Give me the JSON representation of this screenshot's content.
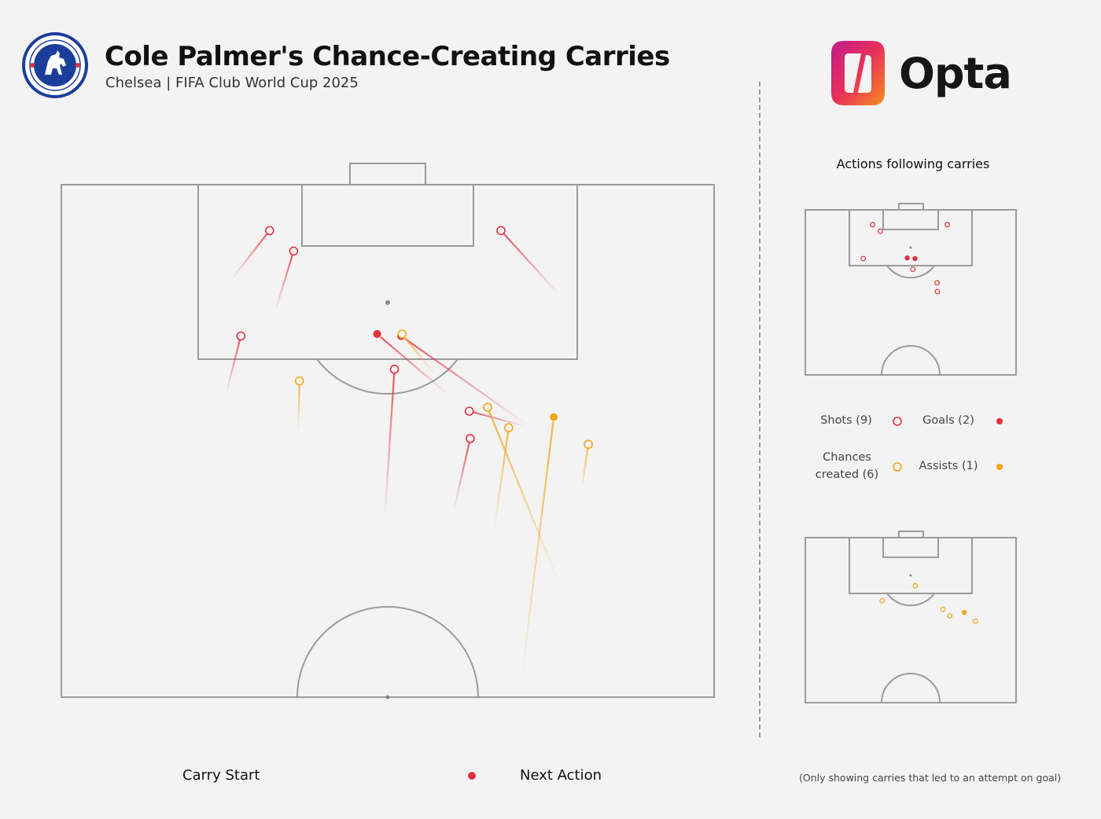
{
  "header": {
    "title": "Cole Palmer's Chance-Creating Carries",
    "subtitle": "Chelsea | FIFA Club World Cup 2025",
    "crest_text": "CHELSEA FOOTBALL CLUB",
    "brand": "Opta"
  },
  "side": {
    "title": "Actions following carries",
    "legend": {
      "shots": "Shots (9)",
      "goals": "Goals (2)",
      "chances_line1": "Chances",
      "chances_line2": "created (6)",
      "assists": "Assists (1)"
    }
  },
  "bottom_legend": {
    "carry_start": "Carry Start",
    "next_action": "Next Action"
  },
  "footnote": "(Only showing carries that led to an attempt on goal)",
  "colors": {
    "background": "#f3f3f3",
    "pitch_line": "#999999",
    "shot": "#e2313f",
    "chance": "#f2a51e",
    "crest_blue": "#1b3e9a",
    "text": "#111111"
  },
  "chart_data": {
    "type": "scatter",
    "pitch": "attacking half, goal at top",
    "units": "pitch metres: x = 0 left touchline to 68 right touchline, y = metres from goal line",
    "xlim": [
      0,
      68
    ],
    "ylim": [
      0,
      52.5
    ],
    "carries": [
      {
        "category": "shot",
        "start": [
          17.8,
          9.6
        ],
        "end": [
          21.7,
          4.7
        ]
      },
      {
        "category": "shot",
        "start": [
          22.3,
          12.9
        ],
        "end": [
          24.2,
          6.8
        ]
      },
      {
        "category": "shot",
        "start": [
          51.8,
          11.2
        ],
        "end": [
          45.8,
          4.7
        ]
      },
      {
        "category": "shot",
        "start": [
          17.2,
          21.3
        ],
        "end": [
          18.7,
          15.5
        ]
      },
      {
        "category": "goal",
        "start": [
          40.3,
          21.5
        ],
        "end": [
          32.9,
          15.3
        ]
      },
      {
        "category": "goal",
        "start": [
          48.7,
          24.7
        ],
        "end": [
          35.4,
          15.5
        ]
      },
      {
        "category": "shot",
        "start": [
          33.7,
          34.2
        ],
        "end": [
          34.7,
          18.9
        ]
      },
      {
        "category": "shot",
        "start": [
          48.2,
          24.7
        ],
        "end": [
          42.5,
          23.2
        ]
      },
      {
        "category": "shot",
        "start": [
          40.9,
          33.3
        ],
        "end": [
          42.6,
          26.0
        ]
      },
      {
        "category": "chance",
        "start": [
          24.7,
          25.2
        ],
        "end": [
          24.8,
          20.1
        ]
      },
      {
        "category": "chance",
        "start": [
          38.8,
          19.3
        ],
        "end": [
          35.5,
          15.3
        ]
      },
      {
        "category": "chance",
        "start": [
          52.0,
          41.2
        ],
        "end": [
          44.4,
          22.8
        ]
      },
      {
        "category": "chance",
        "start": [
          45.1,
          35.4
        ],
        "end": [
          46.6,
          24.9
        ]
      },
      {
        "category": "chance",
        "start": [
          54.2,
          31.2
        ],
        "end": [
          54.9,
          26.6
        ]
      },
      {
        "category": "assist",
        "start": [
          47.9,
          51.0
        ],
        "end": [
          51.3,
          23.8
        ]
      }
    ],
    "shots_count": 9,
    "goals_count": 2,
    "chances_created_count": 6,
    "assists_count": 1
  }
}
